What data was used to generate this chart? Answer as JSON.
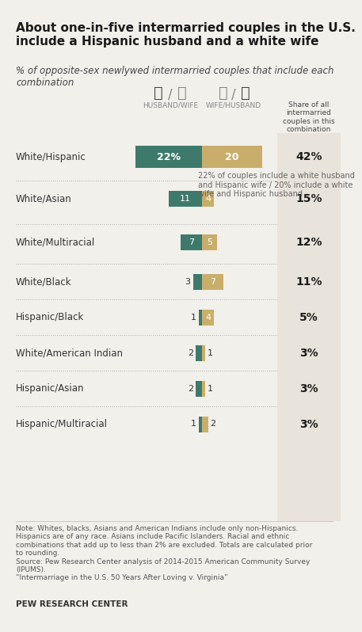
{
  "title": "About one-in-five intermarried couples in the U.S.\ninclude a Hispanic husband and a white wife",
  "subtitle": "% of opposite-sex newlywed intermarried couples that include each\ncombination",
  "categories": [
    "White/Hispanic",
    "White/Asian",
    "White/Multiracial",
    "White/Black",
    "Hispanic/Black",
    "White/American Indian",
    "Hispanic/Asian",
    "Hispanic/Multiracial"
  ],
  "husband_wife": [
    22,
    11,
    7,
    3,
    1,
    2,
    2,
    1
  ],
  "wife_husband": [
    20,
    4,
    5,
    7,
    4,
    1,
    1,
    2
  ],
  "share": [
    "42%",
    "15%",
    "12%",
    "11%",
    "5%",
    "3%",
    "3%",
    "3%"
  ],
  "green_color": "#3d7a6b",
  "tan_color": "#c9ae6b",
  "bg_color": "#f2f0eb",
  "right_panel_bg": "#e8e4db",
  "annotation": "22% of couples include a white husband\nand Hispanic wife / 20% include a white\nwife and Hispanic husband",
  "note": "Note: Whites, blacks, Asians and American Indians include only non-Hispanics.\nHispanics are of any race. Asians include Pacific Islanders. Racial and ethnic\ncombinations that add up to less than 2% are excluded. Totals are calculated prior\nto rounding.\nSource: Pew Research Center analysis of 2014-2015 American Community Survey\n(IPUMS).\n“Intermarriage in the U.S. 50 Years After Loving v. Virginia”",
  "footer": "PEW RESEARCH CENTER"
}
